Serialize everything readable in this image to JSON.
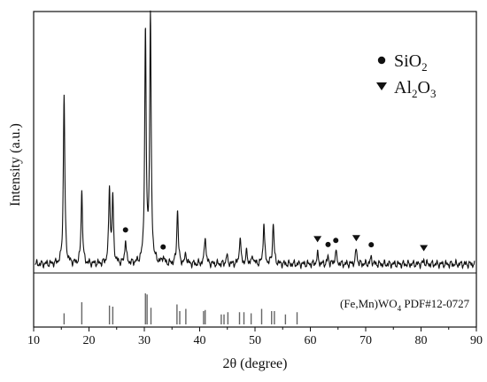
{
  "chart_data": {
    "type": "line",
    "xlabel": "2θ (degree)",
    "ylabel": "Intensity (a.u.)",
    "xlim": [
      10,
      90
    ],
    "x_ticks": [
      "10",
      "20",
      "30",
      "40",
      "50",
      "60",
      "70",
      "80",
      "90"
    ],
    "grid": false,
    "legend": {
      "placement": "top-right",
      "entries": [
        {
          "marker": "circle",
          "base": "SiO",
          "sub": "2"
        },
        {
          "marker": "triangle-down",
          "base": "Al",
          "sub": "2",
          "mid": "O",
          "sub2": "3"
        }
      ]
    },
    "reference_pattern": {
      "label_parts": {
        "a": "(Fe,Mn)WO",
        "sub": "4",
        "b": " PDF#12-0727"
      },
      "peaks_2theta": [
        15.5,
        18.7,
        23.7,
        24.3,
        30.2,
        30.5,
        31.2,
        35.9,
        36.4,
        37.5,
        40.7,
        41.0,
        43.9,
        44.4,
        45.1,
        47.2,
        48.0,
        49.3,
        51.2,
        53.0,
        53.5,
        55.5,
        57.6
      ],
      "relative_heights": [
        0.5,
        1.0,
        0.85,
        0.8,
        1.4,
        1.35,
        0.75,
        0.9,
        0.6,
        0.7,
        0.6,
        0.65,
        0.45,
        0.45,
        0.55,
        0.55,
        0.55,
        0.5,
        0.7,
        0.6,
        0.6,
        0.45,
        0.55
      ]
    },
    "series": [
      {
        "baseline": 0.08,
        "peaks": [
          {
            "x": 15.5,
            "y": 1.0
          },
          {
            "x": 18.7,
            "y": 0.43
          },
          {
            "x": 23.7,
            "y": 0.44
          },
          {
            "x": 24.3,
            "y": 0.38
          },
          {
            "x": 26.6,
            "y": 0.14
          },
          {
            "x": 30.2,
            "y": 1.35
          },
          {
            "x": 31.1,
            "y": 1.43
          },
          {
            "x": 33.4,
            "y": 0.04
          },
          {
            "x": 36.0,
            "y": 0.32
          },
          {
            "x": 37.5,
            "y": 0.06
          },
          {
            "x": 41.0,
            "y": 0.17
          },
          {
            "x": 44.9,
            "y": 0.05
          },
          {
            "x": 47.3,
            "y": 0.16
          },
          {
            "x": 48.5,
            "y": 0.07
          },
          {
            "x": 49.6,
            "y": 0.05
          },
          {
            "x": 51.6,
            "y": 0.24
          },
          {
            "x": 53.3,
            "y": 0.24
          },
          {
            "x": 61.3,
            "y": 0.06
          },
          {
            "x": 63.2,
            "y": 0.04
          },
          {
            "x": 64.6,
            "y": 0.08
          },
          {
            "x": 68.3,
            "y": 0.09
          },
          {
            "x": 71.0,
            "y": 0.04
          },
          {
            "x": 80.5,
            "y": 0.02
          }
        ]
      }
    ],
    "markers": [
      {
        "type": "circle",
        "x": 26.6
      },
      {
        "type": "circle",
        "x": 33.4
      },
      {
        "type": "triangle",
        "x": 61.3
      },
      {
        "type": "circle",
        "x": 63.2
      },
      {
        "type": "circle",
        "x": 64.6
      },
      {
        "type": "triangle",
        "x": 68.3
      },
      {
        "type": "circle",
        "x": 71.0
      },
      {
        "type": "triangle",
        "x": 80.5
      }
    ]
  }
}
